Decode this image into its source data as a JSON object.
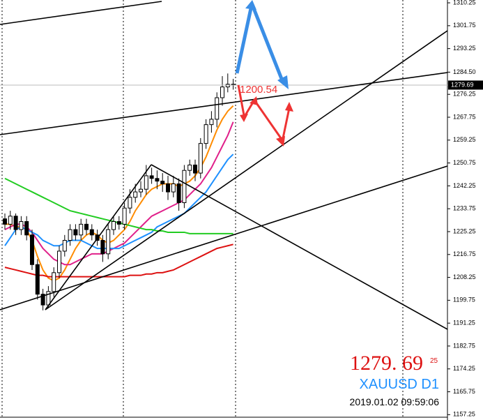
{
  "chart_data": {
    "type": "candlestick",
    "symbol": "XAUUSD D1",
    "timestamp": "2019.01.02 09:59:06",
    "quote": {
      "price": "1279. 69",
      "superscript": "25"
    },
    "annotation": "1200.54",
    "current_price": 1279.69,
    "ylim": [
      1156.3,
      1311.3
    ],
    "yticks": [
      1310.25,
      1301.75,
      1293.25,
      {
        "value": 1284.5,
        "label": "1284.50"
      },
      1276.25,
      1267.75,
      1259.25,
      1250.75,
      1242.25,
      1233.75,
      1225.25,
      1216.75,
      1208.25,
      1199.75,
      1191.25,
      1182.75,
      1174.25,
      1165.75,
      1157.25
    ],
    "bull_color": "#ffffff",
    "bear_color": "#000000",
    "open": [
      1230,
      1228,
      1231,
      1226,
      1229,
      1224,
      1213,
      1202,
      1198,
      1203,
      1210,
      1218,
      1222,
      1226,
      1224,
      1228,
      1226,
      1224,
      1222,
      1217,
      1226,
      1229,
      1228,
      1234,
      1238,
      1240,
      1241,
      1246,
      1245,
      1244,
      1243,
      1240,
      1243,
      1236,
      1248,
      1250,
      1247,
      1258,
      1265,
      1267,
      1275,
      1279,
      1280
    ],
    "high": [
      1232,
      1233,
      1232,
      1231,
      1231,
      1226,
      1215,
      1204,
      1205,
      1212,
      1220,
      1224,
      1228,
      1228,
      1230,
      1230,
      1228,
      1226,
      1224,
      1228,
      1231,
      1231,
      1236,
      1241,
      1243,
      1244,
      1250,
      1249,
      1248,
      1247,
      1246,
      1246,
      1245,
      1250,
      1252,
      1252,
      1260,
      1267,
      1270,
      1277,
      1283,
      1284,
      1282
    ],
    "low": [
      1226,
      1226,
      1224,
      1224,
      1222,
      1211,
      1200,
      1196,
      1197,
      1201,
      1208,
      1216,
      1220,
      1222,
      1222,
      1224,
      1222,
      1220,
      1214,
      1215,
      1224,
      1226,
      1226,
      1232,
      1236,
      1238,
      1239,
      1243,
      1241,
      1240,
      1237,
      1238,
      1233,
      1234,
      1246,
      1244,
      1245,
      1256,
      1262,
      1264,
      1272,
      1277,
      1278
    ],
    "close": [
      1228,
      1231,
      1226,
      1229,
      1224,
      1213,
      1202,
      1198,
      1203,
      1210,
      1218,
      1222,
      1226,
      1224,
      1228,
      1226,
      1224,
      1222,
      1217,
      1226,
      1229,
      1228,
      1234,
      1238,
      1240,
      1241,
      1246,
      1245,
      1244,
      1243,
      1240,
      1243,
      1236,
      1248,
      1250,
      1247,
      1258,
      1265,
      1267,
      1275,
      1279,
      1280,
      1279.69
    ],
    "moving_averages": [
      {
        "color": "#ff8c00",
        "values": [
          1228,
          1228,
          1227,
          1227,
          1226,
          1222,
          1216,
          1211,
          1208,
          1207,
          1208,
          1211,
          1215,
          1219,
          1222,
          1224,
          1225,
          1224,
          1222,
          1221,
          1222,
          1224,
          1226,
          1229,
          1233,
          1236,
          1239,
          1241,
          1242,
          1243,
          1243,
          1243,
          1242,
          1243,
          1244,
          1246,
          1249,
          1253,
          1258,
          1263,
          1267,
          1270,
          1272
        ]
      },
      {
        "color": "#e0208a",
        "values": [
          1226,
          1227,
          1228,
          1228,
          1227,
          1225,
          1222,
          1219,
          1217,
          1215,
          1214,
          1213,
          1213,
          1214,
          1215,
          1216,
          1217,
          1217,
          1217,
          1218,
          1219,
          1220,
          1221,
          1223,
          1225,
          1227,
          1229,
          1231,
          1232,
          1233,
          1234,
          1235,
          1236,
          1237,
          1239,
          1241,
          1243,
          1246,
          1249,
          1253,
          1257,
          1261,
          1266
        ]
      },
      {
        "color": "#1e90ff",
        "values": [
          1220,
          1223,
          1226,
          1227,
          1226,
          1225,
          1224,
          1222,
          1221,
          1220,
          1220,
          1221,
          1222,
          1222,
          1222,
          1221,
          1220,
          1219,
          1219,
          1219,
          1219,
          1219,
          1220,
          1221,
          1222,
          1223,
          1224,
          1225,
          1227,
          1228,
          1229,
          1230,
          1231,
          1232,
          1234,
          1236,
          1238,
          1240,
          1243,
          1246,
          1249,
          1252,
          1254
        ]
      },
      {
        "color": "#22cc22",
        "values": [
          1245,
          1244,
          1243,
          1242,
          1241,
          1240,
          1239,
          1238,
          1237,
          1236,
          1235,
          1234,
          1233,
          1232.5,
          1232,
          1231.5,
          1231,
          1230.5,
          1230,
          1229.5,
          1229,
          1228.5,
          1228,
          1227.5,
          1227,
          1226.5,
          1226,
          1226,
          1225.5,
          1225.5,
          1225,
          1225,
          1225,
          1225,
          1224.5,
          1224.5,
          1224.5,
          1224.5,
          1224.5,
          1224.5,
          1224.5,
          1224.5,
          1224.5
        ]
      },
      {
        "color": "#dd1111",
        "values": [
          1212,
          1211.5,
          1211,
          1210.5,
          1210,
          1209.5,
          1209,
          1209,
          1208.5,
          1208.5,
          1208.5,
          1208.5,
          1208.5,
          1208.5,
          1208.5,
          1208.5,
          1208.5,
          1208.5,
          1208.5,
          1208.5,
          1208.5,
          1208.5,
          1208.5,
          1209,
          1209,
          1209,
          1209.5,
          1209.5,
          1210,
          1210,
          1210.5,
          1211,
          1212,
          1213,
          1214,
          1215,
          1216,
          1217,
          1218,
          1219,
          1219.5,
          1220,
          1220.5
        ]
      }
    ]
  }
}
